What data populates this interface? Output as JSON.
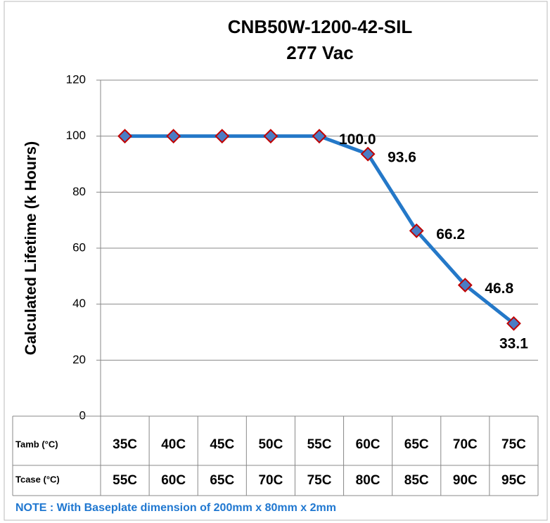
{
  "chart_data": {
    "type": "line",
    "title": "CNB50W-1200-42-SIL",
    "subtitle": "277 Vac",
    "y_label": "Calculated Lifetime (k Hours)",
    "category_row_labels": [
      "Tamb (°C)",
      "Tcase (°C)"
    ],
    "categories": [
      "35C",
      "40C",
      "45C",
      "50C",
      "55C",
      "60C",
      "65C",
      "70C",
      "75C"
    ],
    "categories_tcase": [
      "55C",
      "60C",
      "65C",
      "70C",
      "75C",
      "80C",
      "85C",
      "90C",
      "95C"
    ],
    "values": [
      100,
      100,
      100,
      100,
      100,
      93.6,
      66.2,
      46.8,
      33.1
    ],
    "value_labels": [
      null,
      null,
      null,
      null,
      "100.0",
      "93.6",
      "66.2",
      "46.8",
      "33.1"
    ],
    "color": "#2478c8",
    "marker_color": "#4a7cc4",
    "marker_edge": "#c00000",
    "ylim": [
      0,
      120
    ],
    "yticks": [
      0,
      20,
      40,
      60,
      80,
      100,
      120
    ],
    "grid": true,
    "note": "NOTE : With Baseplate dimension of 200mm x 80mm x 2mm"
  }
}
